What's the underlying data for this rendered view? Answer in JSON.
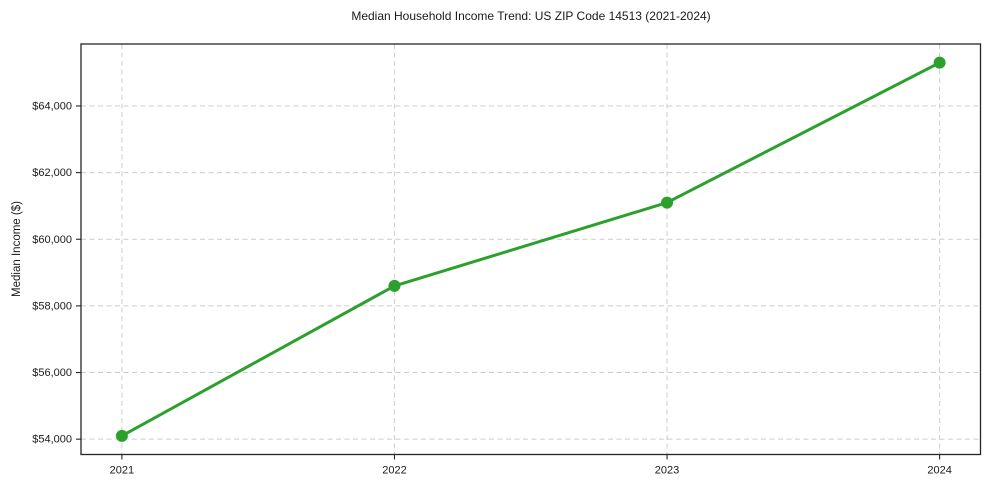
{
  "title": "Median Household Income Trend: US ZIP Code 14513 (2021-2024)",
  "chart_data": {
    "type": "line",
    "title": "Median Household Income Trend: US ZIP Code 14513 (2021-2024)",
    "xlabel": "",
    "ylabel": "Median Income ($)",
    "x": [
      2021,
      2022,
      2023,
      2024
    ],
    "x_tick_labels": [
      "2021",
      "2022",
      "2023",
      "2024"
    ],
    "series": [
      {
        "name": "Median Household Income",
        "values": [
          54100,
          58600,
          61100,
          65300
        ],
        "color": "#2ca02c",
        "marker": "circle",
        "line_width": 3,
        "marker_radius": 6
      }
    ],
    "y_ticks": [
      54000,
      56000,
      58000,
      60000,
      62000,
      64000
    ],
    "y_tick_labels": [
      "$54,000",
      "$56,000",
      "$58,000",
      "$60,000",
      "$62,000",
      "$64,000"
    ],
    "ylim": [
      53540,
      65860
    ],
    "xlim": [
      2020.85,
      2024.15
    ],
    "grid": true,
    "grid_style": "dashed",
    "legend_position": "none"
  },
  "style": {
    "line_color": "#2ca02c",
    "grid_color": "#cccccc",
    "spine_color": "#262626",
    "text_color": "#1a1a1a",
    "background_color": "#ffffff"
  }
}
